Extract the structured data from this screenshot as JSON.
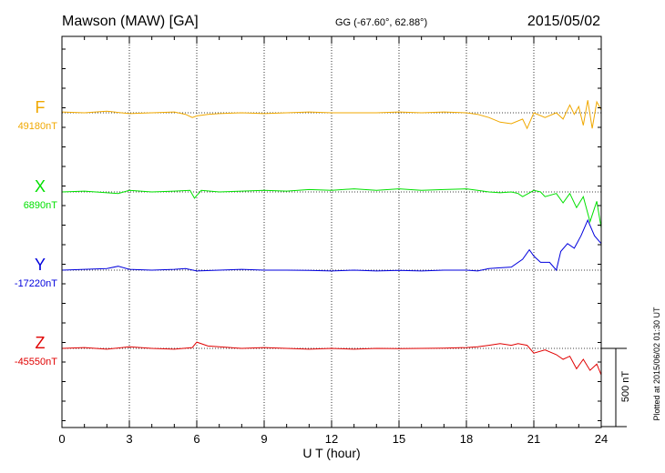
{
  "header": {
    "station": "Mawson (MAW)  [GA]",
    "coords": "GG (-67.60°,  62.88°)",
    "date": "2015/05/02"
  },
  "side_note": "Plotted at 2015/06/02 01:30 UT",
  "scale_bar_label": "500 nT",
  "colors": {
    "F": "#f0a800",
    "X": "#00e000",
    "Y": "#0000dd",
    "Z": "#e00000"
  },
  "chart_data": {
    "type": "line",
    "title": "Mawson (MAW)  [GA]",
    "xlabel": "U T (hour)",
    "xlim": [
      0,
      24
    ],
    "xticks": [
      "0",
      "3",
      "6",
      "9",
      "12",
      "15",
      "18",
      "21",
      "24"
    ],
    "grid": true,
    "scale_nT": 500,
    "series": [
      {
        "name": "F",
        "baseline_label": "49180nT",
        "baseline": 49180,
        "x": [
          0,
          1,
          2,
          3,
          4,
          5,
          5.5,
          5.8,
          6,
          6.5,
          7,
          8,
          9,
          10,
          11,
          12,
          13,
          14,
          15,
          16,
          17,
          18,
          18.5,
          19,
          19.5,
          20,
          20.5,
          20.7,
          21,
          21.5,
          22,
          22.3,
          22.6,
          22.8,
          23,
          23.2,
          23.4,
          23.6,
          23.8,
          24
        ],
        "values": [
          49185,
          49180,
          49190,
          49175,
          49180,
          49185,
          49170,
          49150,
          49160,
          49170,
          49175,
          49180,
          49175,
          49180,
          49185,
          49180,
          49180,
          49180,
          49185,
          49180,
          49185,
          49180,
          49170,
          49150,
          49120,
          49110,
          49140,
          49080,
          49180,
          49150,
          49180,
          49140,
          49230,
          49170,
          49220,
          49100,
          49260,
          49080,
          49250,
          49200
        ]
      },
      {
        "name": "X",
        "baseline_label": "6890nT",
        "baseline": 6890,
        "x": [
          0,
          1,
          2,
          2.5,
          3,
          4,
          5,
          5.7,
          5.9,
          6.2,
          7,
          8,
          9,
          10,
          11,
          12,
          13,
          14,
          15,
          16,
          17,
          18,
          18.5,
          19,
          19.5,
          20,
          20.3,
          20.5,
          21,
          21.3,
          21.5,
          22,
          22.3,
          22.6,
          22.9,
          23.2,
          23.5,
          23.8,
          24
        ],
        "values": [
          6890,
          6895,
          6885,
          6880,
          6900,
          6890,
          6895,
          6900,
          6850,
          6900,
          6890,
          6895,
          6900,
          6895,
          6905,
          6900,
          6910,
          6900,
          6910,
          6900,
          6905,
          6910,
          6900,
          6890,
          6885,
          6890,
          6880,
          6860,
          6900,
          6890,
          6860,
          6880,
          6820,
          6880,
          6790,
          6860,
          6700,
          6830,
          6660
        ]
      },
      {
        "name": "Y",
        "baseline_label": "-17220nT",
        "baseline": -17220,
        "x": [
          0,
          1,
          2,
          2.5,
          3,
          4,
          5,
          5.5,
          6,
          7,
          8,
          9,
          10,
          11,
          12,
          13,
          14,
          15,
          16,
          17,
          18,
          18.5,
          19,
          19.5,
          20,
          20.5,
          20.8,
          21,
          21.3,
          21.7,
          22,
          22.2,
          22.5,
          22.8,
          23.1,
          23.4,
          23.7,
          24
        ],
        "values": [
          -17220,
          -17215,
          -17210,
          -17195,
          -17215,
          -17220,
          -17215,
          -17210,
          -17225,
          -17220,
          -17215,
          -17220,
          -17220,
          -17222,
          -17225,
          -17220,
          -17225,
          -17222,
          -17225,
          -17220,
          -17220,
          -17225,
          -17210,
          -17205,
          -17200,
          -17150,
          -17090,
          -17130,
          -17170,
          -17170,
          -17220,
          -17100,
          -17050,
          -17080,
          -17000,
          -16900,
          -17000,
          -17050
        ]
      },
      {
        "name": "Z",
        "baseline_label": "-45550nT",
        "baseline": -45550,
        "x": [
          0,
          1,
          2,
          3,
          4,
          5,
          5.8,
          6,
          6.5,
          7,
          8,
          9,
          10,
          11,
          12,
          13,
          14,
          15,
          16,
          17,
          18,
          18.5,
          19,
          19.5,
          20,
          20.3,
          20.7,
          21,
          21.5,
          22,
          22.3,
          22.6,
          22.9,
          23.2,
          23.5,
          23.8,
          24
        ],
        "values": [
          -45550,
          -45545,
          -45555,
          -45540,
          -45550,
          -45555,
          -45545,
          -45510,
          -45535,
          -45540,
          -45550,
          -45545,
          -45550,
          -45555,
          -45550,
          -45555,
          -45550,
          -45552,
          -45550,
          -45548,
          -45545,
          -45540,
          -45530,
          -45520,
          -45530,
          -45520,
          -45530,
          -45580,
          -45560,
          -45590,
          -45620,
          -45600,
          -45680,
          -45620,
          -45690,
          -45650,
          -45720
        ]
      }
    ]
  }
}
